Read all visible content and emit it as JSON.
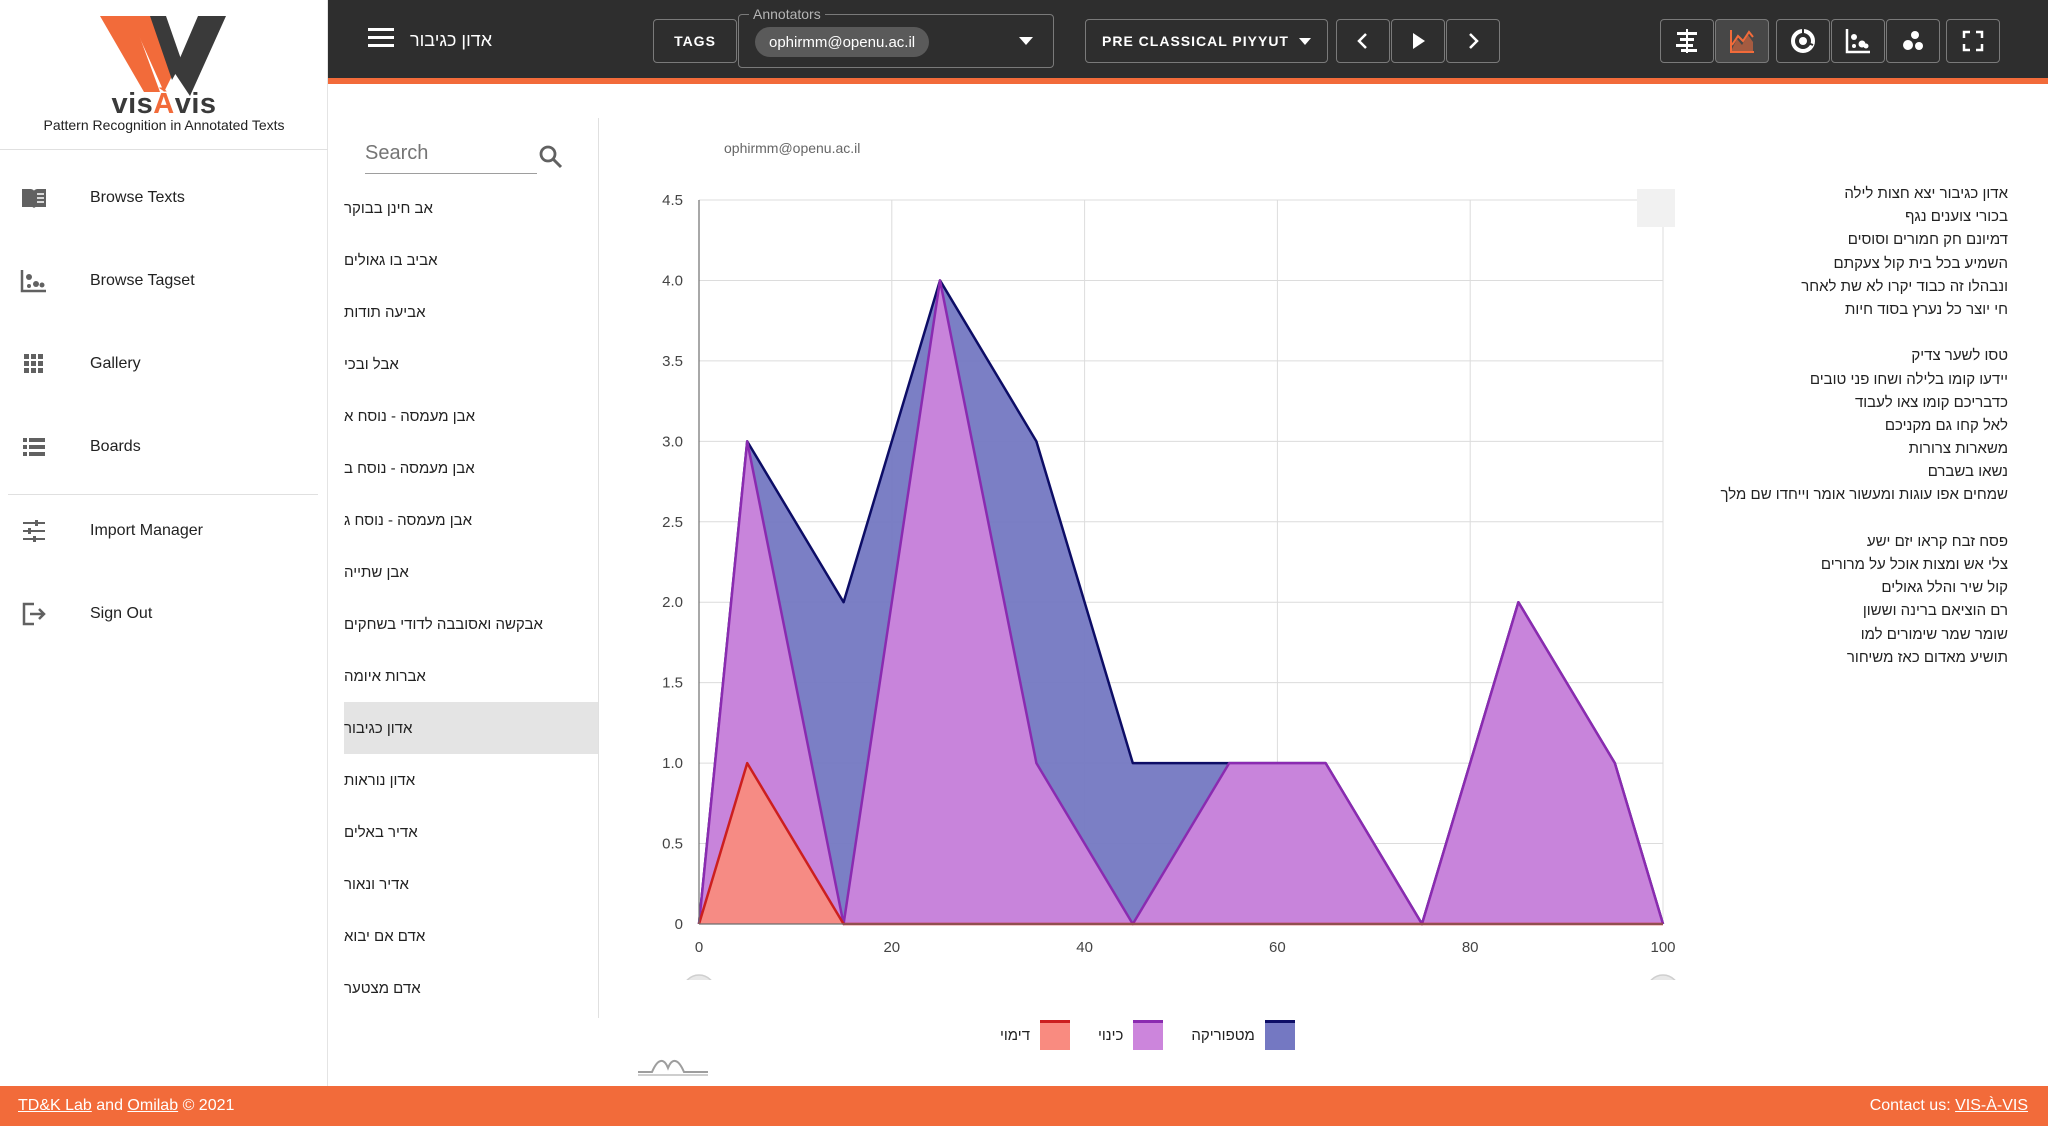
{
  "app": {
    "brand_prefix": "vis",
    "brand_accent": "À",
    "brand_suffix": "vis",
    "tagline": "Pattern Recognition in Annotated Texts",
    "accent_color": "#f26b3a",
    "topbar_color": "#2e2e2e"
  },
  "sidebar": {
    "items": [
      {
        "label": "Browse Texts",
        "icon": "book-open-icon"
      },
      {
        "label": "Browse Tagset",
        "icon": "scatter-dots-icon"
      },
      {
        "label": "Gallery",
        "icon": "grid-icon"
      },
      {
        "label": "Boards",
        "icon": "list-icon"
      },
      {
        "label": "Import Manager",
        "icon": "tune-sliders-icon"
      },
      {
        "label": "Sign Out",
        "icon": "exit-icon"
      }
    ]
  },
  "header": {
    "title": "אדון כגיבור",
    "tags_label": "TAGS",
    "annotators_label": "Annotators",
    "annotator_chip": "ophirmm@openu.ac.il",
    "genre_label": "PRE CLASSICAL PIYYUT"
  },
  "search": {
    "placeholder": "Search"
  },
  "texts": [
    "אב חינן בבוקר",
    "אביב בו גאולים",
    "אביעה תודות",
    "אבל ובכי",
    "אבן מעמסה - נוסח א",
    "אבן מעמסה - נוסח ב",
    "אבן מעמסה - נוסח ג",
    "אבן שתייה",
    "אבקשה ואסובבה לדודי בשחקים",
    "אברות איומה",
    "אדון כגיבור",
    "אדון נוראות",
    "אדיר באלים",
    "אדיר ונאור",
    "אדם אם יבוא",
    "אדם מצטער"
  ],
  "selected_text": "אדון כגיבור",
  "chart_user": "ophirmm@openu.ac.il",
  "chart_data": {
    "type": "area",
    "x": [
      0,
      5,
      15,
      25,
      35,
      45,
      55,
      65,
      75,
      85,
      95,
      100
    ],
    "series": [
      {
        "name": "מטפוריקה",
        "values": [
          0,
          3,
          2,
          4,
          3,
          1,
          1,
          1,
          0,
          2,
          1,
          0
        ],
        "color": "#7478c2",
        "stroke": "#0d0d66"
      },
      {
        "name": "כינוי",
        "values": [
          0,
          3,
          0,
          4,
          1,
          0,
          1,
          1,
          0,
          2,
          1,
          0
        ],
        "color": "#cc85dc",
        "stroke": "#8a2bb0"
      },
      {
        "name": "דימוי",
        "values": [
          0,
          1,
          0,
          0,
          0,
          0,
          0,
          0,
          0,
          0,
          0,
          0
        ],
        "color": "#f98b80",
        "stroke": "#cc1f1f"
      }
    ],
    "xlim": [
      0,
      100
    ],
    "ylim": [
      0,
      4.5
    ],
    "xticks": [
      "0",
      "20",
      "40",
      "60",
      "80",
      "100"
    ],
    "yticks": [
      "0",
      "0.5",
      "1.0",
      "1.5",
      "2.0",
      "2.5",
      "3.0",
      "3.5",
      "4.0",
      "4.5"
    ],
    "grid": true,
    "legend_position": "bottom-center",
    "legend": [
      "דימוי",
      "כינוי",
      "מטפוריקה"
    ]
  },
  "poem": [
    [
      "אדון כגיבור יצא חצות לילה",
      "בכורי צוענים נגף",
      "דמיונם חק חמורים וסוסים",
      "השמיע בכל בית קול צעקתם",
      "ונבהלו זה כבוד יקרו לא שת לאחר",
      "חי יוצר כל נערץ בסוד חיות"
    ],
    [
      "טסו לשער צדיק",
      "יידעו קומו בלילה ושחו פני טובים",
      "כדבריכם קומו צאו לעבוד",
      "לאל קחו גם מקניכם",
      "משארות צרורות",
      "נשאו בשברם",
      "שמחים אפו עוגות ומעשור אומר וייחדו שם מלך"
    ],
    [
      "פסח זבח קראו יזם ישע",
      "צלי אש ומצות אוכל על מרורים",
      "קול שיר והלל גאולים",
      "רם הוציאם ברינה וששון",
      "שומר שמר שימורים למו",
      "תושיע מאדום כאז משיחור"
    ]
  ],
  "footer": {
    "link1": "TD&K Lab",
    "and": "and",
    "link2": "Omilab",
    "copyright": "© 2021",
    "contact_label": "Contact us:",
    "contact_link": "VIS-À-VIS"
  }
}
